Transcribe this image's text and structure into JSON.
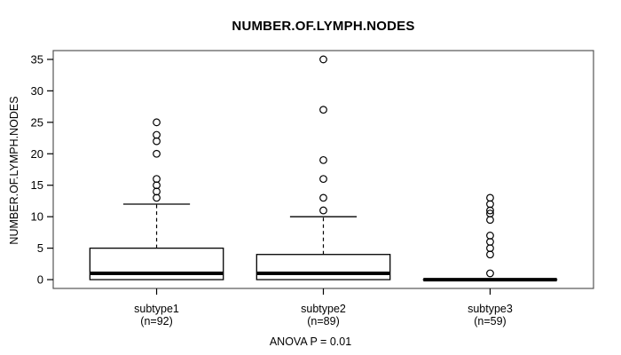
{
  "chart_data": {
    "type": "boxplot",
    "title": "NUMBER.OF.LYMPH.NODES",
    "ylabel": "NUMBER.OF.LYMPH.NODES",
    "annotation": "ANOVA P = 0.01",
    "ylim": [
      0,
      35
    ],
    "yticks": [
      0,
      5,
      10,
      15,
      20,
      25,
      30,
      35
    ],
    "grid": false,
    "legend": false,
    "groups": [
      {
        "label": "subtype1",
        "sublabel": "(n=92)",
        "stats": {
          "min": 0,
          "q1": 0,
          "median": 1,
          "q3": 5,
          "whisker_high": 12
        },
        "outliers": [
          13,
          14,
          15,
          16,
          20,
          22,
          23,
          25
        ]
      },
      {
        "label": "subtype2",
        "sublabel": "(n=89)",
        "stats": {
          "min": 0,
          "q1": 0,
          "median": 1,
          "q3": 4,
          "whisker_high": 10
        },
        "outliers": [
          11,
          13,
          16,
          19,
          27,
          35
        ]
      },
      {
        "label": "subtype3",
        "sublabel": "(n=59)",
        "stats": {
          "min": 0,
          "q1": 0,
          "median": 0,
          "q3": 0,
          "whisker_high": 0
        },
        "outliers": [
          1,
          4,
          5,
          6,
          7,
          9.5,
          10.5,
          11,
          12,
          13
        ]
      }
    ],
    "colors": {
      "line": "#000000",
      "box_fill": "#ffffff",
      "plot_border": "#555555",
      "background": "#ffffff"
    }
  }
}
